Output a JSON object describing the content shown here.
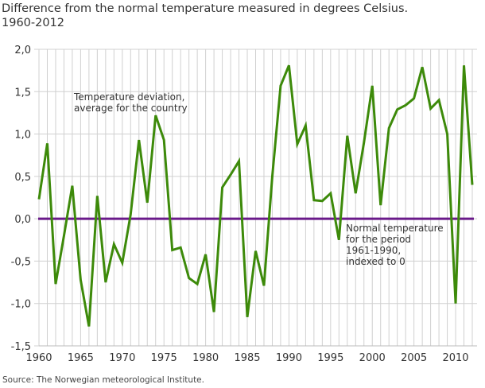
{
  "title_line1": "Difference from the normal temperature measured in degrees Celsius.",
  "title_line2": "1960-2012",
  "source": "Source: The Norwegian meteorological Institute.",
  "chart_data": {
    "type": "line",
    "title": "Difference from the normal temperature measured in degrees Celsius. 1960-2012",
    "xlabel": "",
    "ylabel": "",
    "xlim": [
      1960,
      2012
    ],
    "ylim": [
      -1.5,
      2.0
    ],
    "x_ticks": [
      "1960",
      "1965",
      "1970",
      "1975",
      "1980",
      "1985",
      "1990",
      "1995",
      "2000",
      "2005",
      "2010"
    ],
    "y_ticks": [
      "-1,5",
      "-1,0",
      "-0,5",
      "0,0",
      "0,5",
      "1,0",
      "1,5",
      "2,0"
    ],
    "grid": true,
    "x": [
      1960,
      1961,
      1962,
      1963,
      1964,
      1965,
      1966,
      1967,
      1968,
      1969,
      1970,
      1971,
      1972,
      1973,
      1974,
      1975,
      1976,
      1977,
      1978,
      1979,
      1980,
      1981,
      1982,
      1983,
      1984,
      1985,
      1986,
      1987,
      1988,
      1989,
      1990,
      1991,
      1992,
      1993,
      1994,
      1995,
      1996,
      1997,
      1998,
      1999,
      2000,
      2001,
      2002,
      2003,
      2004,
      2005,
      2006,
      2007,
      2008,
      2009,
      2010,
      2011,
      2012
    ],
    "series": [
      {
        "color": "#3d8a0a",
        "values": [
          0.23,
          0.89,
          -0.77,
          -0.2,
          0.39,
          -0.72,
          -1.27,
          0.27,
          -0.75,
          -0.3,
          -0.52,
          0.05,
          0.93,
          0.19,
          1.22,
          0.93,
          -0.37,
          -0.34,
          -0.7,
          -0.77,
          -0.42,
          -1.1,
          0.37,
          0.52,
          0.68,
          -1.16,
          -0.38,
          -0.79,
          0.5,
          1.57,
          1.81,
          0.88,
          1.1,
          0.22,
          0.21,
          0.3,
          -0.25,
          0.98,
          0.3,
          0.9,
          1.57,
          0.16,
          1.07,
          1.29,
          1.34,
          1.42,
          1.79,
          1.3,
          1.4,
          1.0,
          -1.0,
          1.81,
          0.4
        ]
      },
      {
        "color": "#6a1a8a",
        "values": "constant 0"
      }
    ],
    "annotations": [
      {
        "lines": [
          "Temperature deviation,",
          "average for the country"
        ]
      },
      {
        "lines": [
          "Normal temperature",
          "for the period",
          "1961-1990,",
          "indexed to 0"
        ]
      }
    ]
  }
}
